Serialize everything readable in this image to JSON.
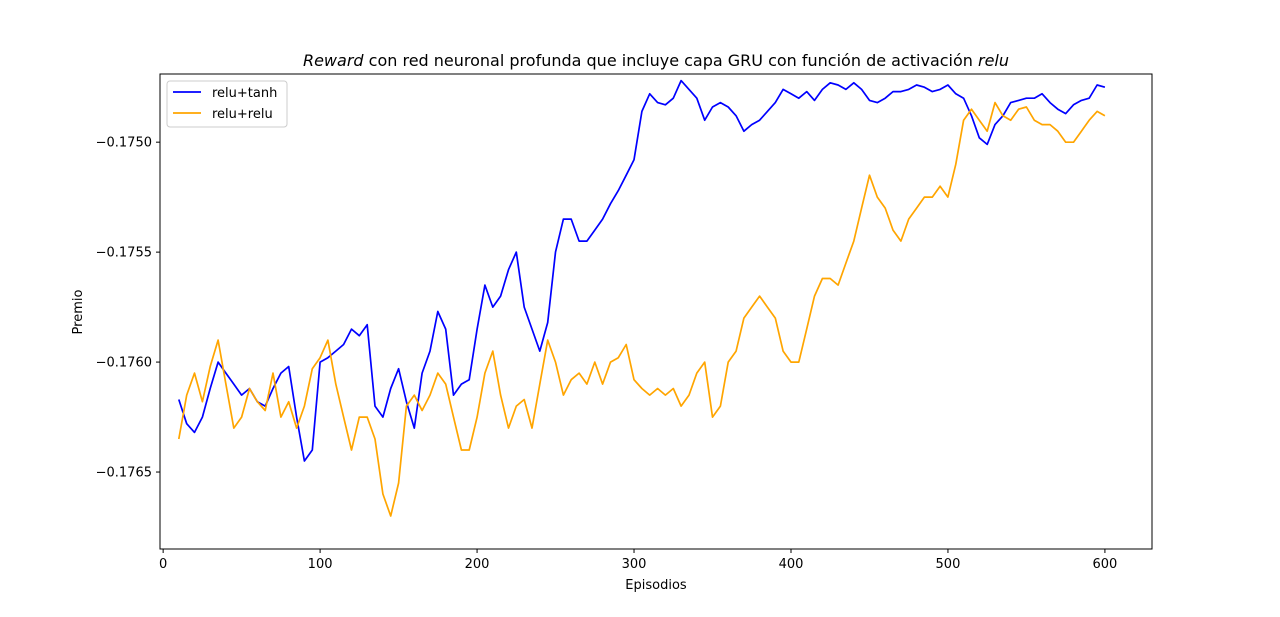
{
  "chart_data": {
    "type": "line",
    "title": {
      "parts": [
        {
          "text": "Reward",
          "italic": true
        },
        {
          "text": " con red neuronal profunda que incluye capa GRU con función de activación ",
          "italic": false
        },
        {
          "text": "relu",
          "italic": true
        }
      ]
    },
    "xlabel": "Episodios",
    "ylabel": "Premio",
    "xlim": [
      -2,
      630
    ],
    "ylim": [
      -0.17685,
      -0.17469
    ],
    "xticks": [
      0,
      100,
      200,
      300,
      400,
      500,
      600
    ],
    "yticks": [
      -0.1765,
      -0.176,
      -0.1755,
      -0.175
    ],
    "ytick_labels": [
      "−0.1765",
      "−0.1760",
      "−0.1755",
      "−0.1750"
    ],
    "grid": false,
    "legend_position": "top-left",
    "series": [
      {
        "name": "relu+tanh",
        "color": "#0000ff",
        "x": [
          10,
          15,
          20,
          25,
          30,
          35,
          40,
          45,
          50,
          55,
          60,
          65,
          70,
          75,
          80,
          85,
          90,
          95,
          100,
          105,
          110,
          115,
          120,
          125,
          130,
          135,
          140,
          145,
          150,
          155,
          160,
          165,
          170,
          175,
          180,
          185,
          190,
          195,
          200,
          205,
          210,
          215,
          220,
          225,
          230,
          235,
          240,
          245,
          250,
          255,
          260,
          265,
          270,
          275,
          280,
          285,
          290,
          295,
          300,
          305,
          310,
          315,
          320,
          325,
          330,
          335,
          340,
          345,
          350,
          355,
          360,
          365,
          370,
          375,
          380,
          385,
          390,
          395,
          400,
          405,
          410,
          415,
          420,
          425,
          430,
          435,
          440,
          445,
          450,
          455,
          460,
          465,
          470,
          475,
          480,
          485,
          490,
          495,
          500,
          505,
          510,
          515,
          520,
          525,
          530,
          535,
          540,
          545,
          550,
          555,
          560,
          565,
          570,
          575,
          580,
          585,
          590,
          595,
          600
        ],
        "y": [
          -0.17617,
          -0.17628,
          -0.17632,
          -0.17625,
          -0.17612,
          -0.176,
          -0.17605,
          -0.1761,
          -0.17615,
          -0.17612,
          -0.17618,
          -0.1762,
          -0.17612,
          -0.17605,
          -0.17602,
          -0.17625,
          -0.17645,
          -0.1764,
          -0.176,
          -0.17598,
          -0.17595,
          -0.17592,
          -0.17585,
          -0.17588,
          -0.17583,
          -0.1762,
          -0.17625,
          -0.17612,
          -0.17603,
          -0.17618,
          -0.1763,
          -0.17605,
          -0.17595,
          -0.17577,
          -0.17585,
          -0.17615,
          -0.1761,
          -0.17608,
          -0.17585,
          -0.17565,
          -0.17575,
          -0.1757,
          -0.17558,
          -0.1755,
          -0.17575,
          -0.17585,
          -0.17595,
          -0.17582,
          -0.1755,
          -0.17535,
          -0.17535,
          -0.17545,
          -0.17545,
          -0.1754,
          -0.17535,
          -0.17528,
          -0.17522,
          -0.17515,
          -0.17508,
          -0.17486,
          -0.17478,
          -0.17482,
          -0.17483,
          -0.1748,
          -0.17472,
          -0.17476,
          -0.1748,
          -0.1749,
          -0.17484,
          -0.17482,
          -0.17484,
          -0.17488,
          -0.17495,
          -0.17492,
          -0.1749,
          -0.17486,
          -0.17482,
          -0.17476,
          -0.17478,
          -0.1748,
          -0.17477,
          -0.17481,
          -0.17476,
          -0.17473,
          -0.17474,
          -0.17476,
          -0.17473,
          -0.17476,
          -0.17481,
          -0.17482,
          -0.1748,
          -0.17477,
          -0.17477,
          -0.17476,
          -0.17474,
          -0.17475,
          -0.17477,
          -0.17476,
          -0.17474,
          -0.17478,
          -0.1748,
          -0.17488,
          -0.17498,
          -0.17501,
          -0.17492,
          -0.17488,
          -0.17482,
          -0.17481,
          -0.1748,
          -0.1748,
          -0.17478,
          -0.17482,
          -0.17485,
          -0.17487,
          -0.17483,
          -0.17481,
          -0.1748,
          -0.17474,
          -0.17475
        ]
      },
      {
        "name": "relu+relu",
        "color": "#ffa500",
        "x": [
          10,
          15,
          20,
          25,
          30,
          35,
          40,
          45,
          50,
          55,
          60,
          65,
          70,
          75,
          80,
          85,
          90,
          95,
          100,
          105,
          110,
          115,
          120,
          125,
          130,
          135,
          140,
          145,
          150,
          155,
          160,
          165,
          170,
          175,
          180,
          185,
          190,
          195,
          200,
          205,
          210,
          215,
          220,
          225,
          230,
          235,
          240,
          245,
          250,
          255,
          260,
          265,
          270,
          275,
          280,
          285,
          290,
          295,
          300,
          305,
          310,
          315,
          320,
          325,
          330,
          335,
          340,
          345,
          350,
          355,
          360,
          365,
          370,
          375,
          380,
          385,
          390,
          395,
          400,
          405,
          410,
          415,
          420,
          425,
          430,
          435,
          440,
          445,
          450,
          455,
          460,
          465,
          470,
          475,
          480,
          485,
          490,
          495,
          500,
          505,
          510,
          515,
          520,
          525,
          530,
          535,
          540,
          545,
          550,
          555,
          560,
          565,
          570,
          575,
          580,
          585,
          590,
          595,
          600
        ],
        "y": [
          -0.17635,
          -0.17615,
          -0.17605,
          -0.17618,
          -0.17602,
          -0.1759,
          -0.1761,
          -0.1763,
          -0.17625,
          -0.17612,
          -0.17618,
          -0.17622,
          -0.17605,
          -0.17625,
          -0.17618,
          -0.1763,
          -0.1762,
          -0.17603,
          -0.17598,
          -0.1759,
          -0.1761,
          -0.17625,
          -0.1764,
          -0.17625,
          -0.17625,
          -0.17635,
          -0.1766,
          -0.1767,
          -0.17655,
          -0.1762,
          -0.17615,
          -0.17622,
          -0.17615,
          -0.17605,
          -0.1761,
          -0.17625,
          -0.1764,
          -0.1764,
          -0.17625,
          -0.17605,
          -0.17595,
          -0.17615,
          -0.1763,
          -0.1762,
          -0.17617,
          -0.1763,
          -0.1761,
          -0.1759,
          -0.176,
          -0.17615,
          -0.17608,
          -0.17605,
          -0.1761,
          -0.176,
          -0.1761,
          -0.176,
          -0.17598,
          -0.17592,
          -0.17608,
          -0.17612,
          -0.17615,
          -0.17612,
          -0.17615,
          -0.17612,
          -0.1762,
          -0.17615,
          -0.17605,
          -0.176,
          -0.17625,
          -0.1762,
          -0.176,
          -0.17595,
          -0.1758,
          -0.17575,
          -0.1757,
          -0.17575,
          -0.1758,
          -0.17595,
          -0.176,
          -0.176,
          -0.17585,
          -0.1757,
          -0.17562,
          -0.17562,
          -0.17565,
          -0.17555,
          -0.17545,
          -0.1753,
          -0.17515,
          -0.17525,
          -0.1753,
          -0.1754,
          -0.17545,
          -0.17535,
          -0.1753,
          -0.17525,
          -0.17525,
          -0.1752,
          -0.17525,
          -0.1751,
          -0.1749,
          -0.17485,
          -0.1749,
          -0.17495,
          -0.17482,
          -0.17488,
          -0.1749,
          -0.17485,
          -0.17484,
          -0.1749,
          -0.17492,
          -0.17492,
          -0.17495,
          -0.175,
          -0.175,
          -0.17495,
          -0.1749,
          -0.17486,
          -0.17488
        ]
      }
    ]
  }
}
